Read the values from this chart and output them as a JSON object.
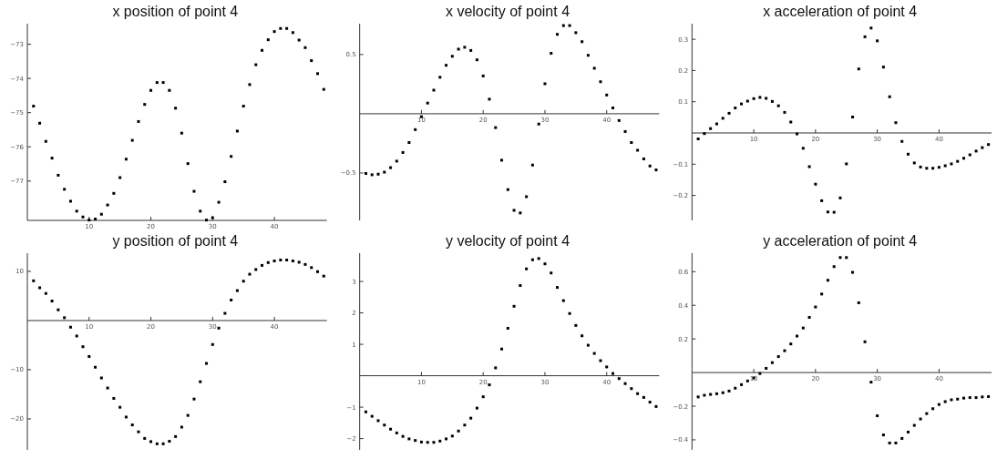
{
  "chart_data": [
    {
      "type": "scatter",
      "title": "x position of point 4",
      "marker": "square",
      "xlim": [
        0,
        48.5
      ],
      "ylim": [
        -78.15,
        -72.4
      ],
      "xticks": [
        10,
        20,
        30,
        40
      ],
      "yticks": [
        -77,
        -76,
        -75,
        -74,
        -73
      ],
      "x": [
        1,
        2,
        3,
        4,
        5,
        6,
        7,
        8,
        9,
        10,
        11,
        12,
        13,
        14,
        15,
        16,
        17,
        18,
        19,
        20,
        21,
        22,
        23,
        24,
        25,
        26,
        27,
        28,
        29,
        30,
        31,
        32,
        33,
        34,
        35,
        36,
        37,
        38,
        39,
        40,
        41,
        42,
        43,
        44,
        45,
        46,
        47,
        48
      ],
      "series": [
        {
          "color": "#000000",
          "values": [
            -74.81,
            -75.31,
            -75.84,
            -76.33,
            -76.83,
            -77.24,
            -77.59,
            -77.88,
            -78.05,
            -78.14,
            -78.11,
            -77.97,
            -77.7,
            -77.36,
            -76.9,
            -76.36,
            -75.81,
            -75.26,
            -74.76,
            -74.35,
            -74.12,
            -74.12,
            -74.35,
            -74.87,
            -75.6,
            -76.49,
            -77.3,
            -77.88,
            -78.14,
            -78.07,
            -77.62,
            -77.02,
            -76.28,
            -75.54,
            -74.81,
            -74.18,
            -73.6,
            -73.18,
            -72.87,
            -72.63,
            -72.54,
            -72.54,
            -72.66,
            -72.88,
            -73.1,
            -73.48,
            -73.86,
            -74.32
          ]
        }
      ]
    },
    {
      "type": "scatter",
      "title": "x velocity of point 4",
      "marker": "square",
      "xlim": [
        0,
        48.5
      ],
      "ylim": [
        -0.9,
        0.76
      ],
      "xticks": [
        10,
        20,
        30,
        40
      ],
      "yticks": [
        -0.5,
        0.5
      ],
      "x": [
        1,
        2,
        3,
        4,
        5,
        6,
        7,
        8,
        9,
        10,
        11,
        12,
        13,
        14,
        15,
        16,
        17,
        18,
        19,
        20,
        21,
        22,
        23,
        24,
        25,
        26,
        27,
        28,
        29,
        30,
        31,
        32,
        33,
        34,
        35,
        36,
        37,
        38,
        39,
        40,
        41,
        42,
        43,
        44,
        45,
        46,
        47,
        48
      ],
      "series": [
        {
          "color": "#000000",
          "values": [
            -0.504,
            -0.515,
            -0.51,
            -0.493,
            -0.455,
            -0.4,
            -0.327,
            -0.243,
            -0.134,
            -0.025,
            0.09,
            0.199,
            0.308,
            0.409,
            0.485,
            0.545,
            0.561,
            0.534,
            0.455,
            0.319,
            0.123,
            -0.117,
            -0.392,
            -0.64,
            -0.815,
            -0.837,
            -0.7,
            -0.433,
            -0.087,
            0.253,
            0.51,
            0.67,
            0.744,
            0.744,
            0.684,
            0.608,
            0.493,
            0.384,
            0.27,
            0.158,
            0.049,
            -0.057,
            -0.15,
            -0.243,
            -0.308,
            -0.381,
            -0.441,
            -0.474
          ]
        }
      ]
    },
    {
      "type": "scatter",
      "title": "x acceleration of point 4",
      "marker": "square",
      "xlim": [
        0,
        48.5
      ],
      "ylim": [
        -0.28,
        0.35
      ],
      "xticks": [
        10,
        20,
        30,
        40
      ],
      "yticks": [
        -0.2,
        -0.1,
        0.1,
        0.2,
        0.3
      ],
      "x": [
        1,
        2,
        3,
        4,
        5,
        6,
        7,
        8,
        9,
        10,
        11,
        12,
        13,
        14,
        15,
        16,
        17,
        18,
        19,
        20,
        21,
        22,
        23,
        24,
        25,
        26,
        27,
        28,
        29,
        30,
        31,
        32,
        33,
        34,
        35,
        36,
        37,
        38,
        39,
        40,
        41,
        42,
        43,
        44,
        45,
        46,
        47,
        48
      ],
      "series": [
        {
          "color": "#000000",
          "values": [
            -0.019,
            -0.002,
            0.014,
            0.029,
            0.047,
            0.063,
            0.08,
            0.093,
            0.102,
            0.11,
            0.114,
            0.111,
            0.101,
            0.087,
            0.066,
            0.035,
            -0.003,
            -0.049,
            -0.108,
            -0.164,
            -0.217,
            -0.253,
            -0.254,
            -0.208,
            -0.099,
            0.051,
            0.205,
            0.308,
            0.336,
            0.295,
            0.211,
            0.116,
            0.033,
            -0.027,
            -0.068,
            -0.096,
            -0.109,
            -0.113,
            -0.113,
            -0.11,
            -0.105,
            -0.099,
            -0.091,
            -0.081,
            -0.07,
            -0.058,
            -0.047,
            -0.037
          ]
        }
      ]
    },
    {
      "type": "scatter",
      "title": "y position of point 4",
      "marker": "square",
      "xlim": [
        0,
        48.5
      ],
      "ylim": [
        -26.3,
        13.7
      ],
      "xticks": [
        10,
        20,
        30,
        40
      ],
      "yticks": [
        -20,
        -10,
        10
      ],
      "x": [
        1,
        2,
        3,
        4,
        5,
        6,
        7,
        8,
        9,
        10,
        11,
        12,
        13,
        14,
        15,
        16,
        17,
        18,
        19,
        20,
        21,
        22,
        23,
        24,
        25,
        26,
        27,
        28,
        29,
        30,
        31,
        32,
        33,
        34,
        35,
        36,
        37,
        38,
        39,
        40,
        41,
        42,
        43,
        44,
        45,
        46,
        47,
        48
      ],
      "series": [
        {
          "color": "#000000",
          "values": [
            8.08,
            6.67,
            5.51,
            3.97,
            2.18,
            0.58,
            -1.35,
            -3.14,
            -5.32,
            -7.31,
            -9.49,
            -11.67,
            -13.72,
            -15.83,
            -17.63,
            -19.62,
            -21.22,
            -22.63,
            -23.97,
            -24.62,
            -25.06,
            -25.06,
            -24.55,
            -23.59,
            -21.67,
            -19.29,
            -15.96,
            -12.44,
            -8.72,
            -4.87,
            -1.54,
            1.47,
            4.17,
            6.09,
            8.01,
            9.42,
            10.38,
            11.22,
            11.79,
            12.12,
            12.31,
            12.31,
            12.12,
            11.86,
            11.41,
            10.77,
            9.94,
            9.04
          ]
        }
      ]
    },
    {
      "type": "scatter",
      "title": "y velocity of point 4",
      "marker": "square",
      "xlim": [
        0,
        48.5
      ],
      "ylim": [
        -2.36,
        3.9
      ],
      "xticks": [
        10,
        20,
        30,
        40
      ],
      "yticks": [
        -2,
        -1,
        1,
        2,
        3
      ],
      "x": [
        1,
        2,
        3,
        4,
        5,
        6,
        7,
        8,
        9,
        10,
        11,
        12,
        13,
        14,
        15,
        16,
        17,
        18,
        19,
        20,
        21,
        22,
        23,
        24,
        25,
        26,
        27,
        28,
        29,
        30,
        31,
        32,
        33,
        34,
        35,
        36,
        37,
        38,
        39,
        40,
        41,
        42,
        43,
        44,
        45,
        46,
        47,
        48
      ],
      "series": [
        {
          "color": "#000000",
          "values": [
            -1.15,
            -1.29,
            -1.43,
            -1.57,
            -1.7,
            -1.82,
            -1.93,
            -2.01,
            -2.06,
            -2.11,
            -2.12,
            -2.12,
            -2.08,
            -2.01,
            -1.92,
            -1.76,
            -1.57,
            -1.35,
            -1.03,
            -0.67,
            -0.29,
            0.25,
            0.85,
            1.51,
            2.21,
            2.87,
            3.4,
            3.69,
            3.73,
            3.56,
            3.27,
            2.81,
            2.39,
            1.98,
            1.6,
            1.27,
            0.97,
            0.71,
            0.48,
            0.28,
            0.07,
            -0.09,
            -0.25,
            -0.41,
            -0.57,
            -0.69,
            -0.84,
            -0.98
          ]
        }
      ]
    },
    {
      "type": "scatter",
      "title": "y acceleration of point 4",
      "marker": "square",
      "xlim": [
        0,
        48.5
      ],
      "ylim": [
        -0.46,
        0.71
      ],
      "xticks": [
        10,
        20,
        30,
        40
      ],
      "yticks": [
        -0.4,
        -0.2,
        0.2,
        0.4,
        0.6
      ],
      "x": [
        1,
        2,
        3,
        4,
        5,
        6,
        7,
        8,
        9,
        10,
        11,
        12,
        13,
        14,
        15,
        16,
        17,
        18,
        19,
        20,
        21,
        22,
        23,
        24,
        25,
        26,
        27,
        28,
        29,
        30,
        31,
        32,
        33,
        34,
        35,
        36,
        37,
        38,
        39,
        40,
        41,
        42,
        43,
        44,
        45,
        46,
        47,
        48
      ],
      "series": [
        {
          "color": "#000000",
          "values": [
            -0.145,
            -0.135,
            -0.13,
            -0.126,
            -0.12,
            -0.11,
            -0.093,
            -0.072,
            -0.05,
            -0.032,
            -0.006,
            0.025,
            0.059,
            0.095,
            0.13,
            0.17,
            0.217,
            0.265,
            0.328,
            0.39,
            0.467,
            0.549,
            0.63,
            0.684,
            0.684,
            0.596,
            0.415,
            0.183,
            -0.057,
            -0.257,
            -0.371,
            -0.419,
            -0.419,
            -0.392,
            -0.354,
            -0.314,
            -0.276,
            -0.244,
            -0.215,
            -0.19,
            -0.173,
            -0.162,
            -0.158,
            -0.152,
            -0.149,
            -0.149,
            -0.145,
            -0.143
          ]
        }
      ]
    }
  ]
}
